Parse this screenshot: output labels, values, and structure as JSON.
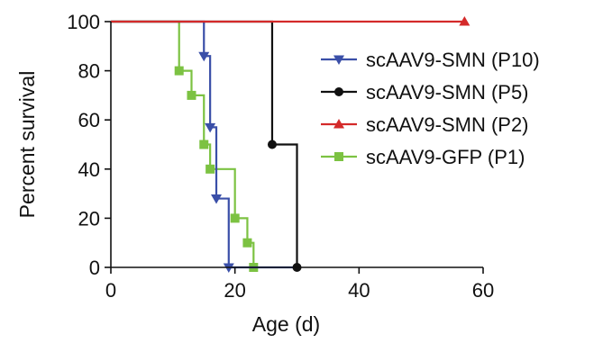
{
  "chart_data": {
    "type": "line",
    "subtype": "kaplan-meier step survival",
    "title": "",
    "xlabel": "Age (d)",
    "ylabel": "Percent survival",
    "xlim": [
      0,
      60
    ],
    "ylim": [
      0,
      100
    ],
    "xticks": [
      0,
      20,
      40,
      60
    ],
    "yticks": [
      0,
      20,
      40,
      60,
      80,
      100
    ],
    "grid": false,
    "legend_position": "right",
    "series": [
      {
        "name": "scAAV9-SMN (P10)",
        "color": "#3a4fa8",
        "marker": "triangle-down",
        "steps": [
          [
            0,
            100
          ],
          [
            15,
            100
          ],
          [
            15,
            86
          ],
          [
            16,
            86
          ],
          [
            16,
            57
          ],
          [
            17,
            57
          ],
          [
            17,
            28
          ],
          [
            19,
            28
          ],
          [
            19,
            0
          ],
          [
            30,
            0
          ]
        ],
        "markers": [
          [
            15,
            86
          ],
          [
            16,
            57
          ],
          [
            17,
            28
          ],
          [
            19,
            0
          ]
        ]
      },
      {
        "name": "scAAV9-SMN (P5)",
        "color": "#111111",
        "marker": "circle",
        "steps": [
          [
            0,
            100
          ],
          [
            26,
            100
          ],
          [
            26,
            50
          ],
          [
            30,
            50
          ],
          [
            30,
            0
          ]
        ],
        "markers": [
          [
            26,
            50
          ],
          [
            30,
            0
          ]
        ]
      },
      {
        "name": "scAAV9-SMN (P2)",
        "color": "#d42a2a",
        "marker": "triangle-up",
        "steps": [
          [
            0,
            100
          ],
          [
            57,
            100
          ]
        ],
        "markers": [
          [
            57,
            100
          ]
        ]
      },
      {
        "name": "scAAV9-GFP (P1)",
        "color": "#7cc242",
        "marker": "square",
        "steps": [
          [
            0,
            100
          ],
          [
            11,
            100
          ],
          [
            11,
            80
          ],
          [
            13,
            80
          ],
          [
            13,
            70
          ],
          [
            15,
            70
          ],
          [
            15,
            50
          ],
          [
            16,
            50
          ],
          [
            16,
            40
          ],
          [
            20,
            40
          ],
          [
            20,
            20
          ],
          [
            22,
            20
          ],
          [
            22,
            10
          ],
          [
            23,
            10
          ],
          [
            23,
            0
          ]
        ],
        "markers": [
          [
            11,
            80
          ],
          [
            13,
            70
          ],
          [
            15,
            50
          ],
          [
            16,
            40
          ],
          [
            20,
            20
          ],
          [
            22,
            10
          ],
          [
            23,
            0
          ]
        ]
      }
    ]
  }
}
